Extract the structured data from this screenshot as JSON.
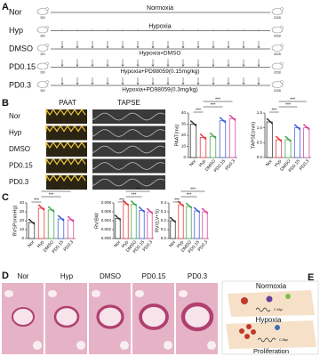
{
  "panels": {
    "a": {
      "label": "A",
      "rows": [
        {
          "group": "Nor",
          "condition": "Normoxia"
        },
        {
          "group": "Hyp",
          "condition": "Hypoxia"
        },
        {
          "group": "DMSO",
          "condition": "Hypoxia+DMSO"
        },
        {
          "group": "PD0.15",
          "condition": "Hypoxia+PD98059(0.15mg/kg)"
        },
        {
          "group": "PD0.3",
          "condition": "Hypoxia+PD98059(0.3mg/kg)"
        }
      ],
      "start_day": "D0",
      "end_day": "D28"
    },
    "b": {
      "label": "B",
      "image_headers": [
        "PAAT",
        "TAPSE"
      ],
      "row_labels": [
        "Nor",
        "Hyp",
        "DMSO",
        "PD0.15",
        "PD0.3"
      ],
      "charts": [
        {
          "type": "bar",
          "y_label": "PAAT(ms)",
          "categories": [
            "Nor",
            "Hyp",
            "DMSO",
            "PD0.15",
            "PD0.3"
          ],
          "colors": [
            "#222222",
            "#e8202a",
            "#2e9e3e",
            "#2a4fd6",
            "#d6308f"
          ],
          "values": [
            30,
            18,
            19,
            33,
            35
          ],
          "ylim": [
            0,
            40
          ],
          "yticks": [
            0,
            10,
            20,
            30,
            40
          ],
          "significance": [
            "***",
            "***",
            "***"
          ]
        },
        {
          "type": "bar",
          "y_label": "TAPSE(mm)",
          "categories": [
            "Nor",
            "Hyp",
            "DMSO",
            "PD0.15",
            "PD0.3"
          ],
          "colors": [
            "#222222",
            "#e8202a",
            "#2e9e3e",
            "#2a4fd6",
            "#d6308f"
          ],
          "values": [
            1.2,
            0.6,
            0.6,
            1.0,
            1.0
          ],
          "ylim": [
            0,
            1.5
          ],
          "yticks": [
            {
              "value": 0,
              "label": "0.0"
            },
            0.5,
            {
              "value": 1,
              "label": "1.0"
            },
            1.5
          ],
          "significance": [
            "***",
            "***",
            "***"
          ]
        }
      ]
    },
    "c": {
      "label": "C",
      "charts": [
        {
          "type": "bar",
          "y_label": "RVSP(mmHg)",
          "categories": [
            "Nor",
            "Hyp",
            "DMSO",
            "PD0.15",
            "PD0.3"
          ],
          "colors": [
            "#222222",
            "#e8202a",
            "#2e9e3e",
            "#2a4fd6",
            "#d6308f"
          ],
          "values": [
            18,
            34,
            32,
            22,
            21
          ],
          "ylim": [
            0,
            40
          ],
          "yticks": [
            0,
            10,
            20,
            30,
            40
          ],
          "significance": [
            "***",
            "***",
            "***"
          ]
        },
        {
          "type": "bar",
          "y_label": "RV/BW",
          "categories": [
            "Nor",
            "Hyp",
            "DMSO",
            "PD0.15",
            "PD0.3"
          ],
          "colors": [
            "#222222",
            "#e8202a",
            "#2e9e3e",
            "#2a4fd6",
            "#d6308f"
          ],
          "values": [
            0.0045,
            0.0078,
            0.0077,
            0.0063,
            0.006
          ],
          "ylim": [
            0,
            0.008
          ],
          "yticks": [
            {
              "value": 0,
              "label": "0.000"
            },
            {
              "value": 0.002,
              "label": "0.002"
            },
            {
              "value": 0.004,
              "label": "0.004"
            },
            {
              "value": 0.006,
              "label": "0.006"
            },
            {
              "value": 0.008,
              "label": "0.008"
            }
          ],
          "significance": [
            "***",
            "***",
            "***"
          ]
        },
        {
          "type": "bar",
          "y_label": "RV/(LV+S)",
          "categories": [
            "Nor",
            "Hyp",
            "DMSO",
            "PD0.15",
            "PD0.3"
          ],
          "colors": [
            "#222222",
            "#e8202a",
            "#2e9e3e",
            "#2a4fd6",
            "#d6308f"
          ],
          "values": [
            0.2,
            0.38,
            0.36,
            0.31,
            0.3
          ],
          "ylim": [
            0,
            0.4
          ],
          "yticks": [
            {
              "value": 0,
              "label": "0.0"
            },
            0.1,
            0.2,
            0.3,
            0.4
          ],
          "significance": [
            "***",
            "***",
            "***"
          ]
        }
      ]
    },
    "d": {
      "label": "D",
      "images": [
        "Nor",
        "Hyp",
        "DMSO",
        "PD0.15",
        "PD0.3"
      ]
    },
    "e": {
      "label": "E",
      "states": [
        "Normoxia",
        "Hypoxia"
      ],
      "gene": "C-Myc",
      "outcome": "Proliferation"
    }
  }
}
